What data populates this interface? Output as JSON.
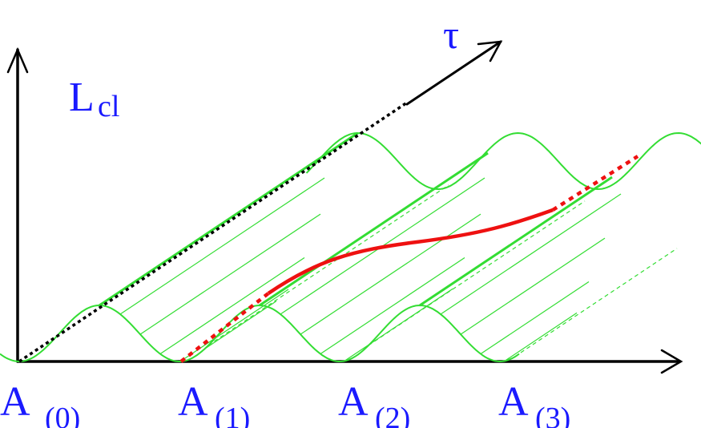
{
  "labels": {
    "y_main": "L",
    "y_sub": "cl",
    "tau": "τ",
    "a_main": "A",
    "a0_sub": "(0)",
    "a1_sub": "(1)",
    "a2_sub": "(2)",
    "a3_sub": "(3)"
  },
  "colors": {
    "axes": "#000000",
    "potential": "#33dd33",
    "path": "#ee1111",
    "diagonal": "#000000",
    "label": "#1a1aff"
  }
}
